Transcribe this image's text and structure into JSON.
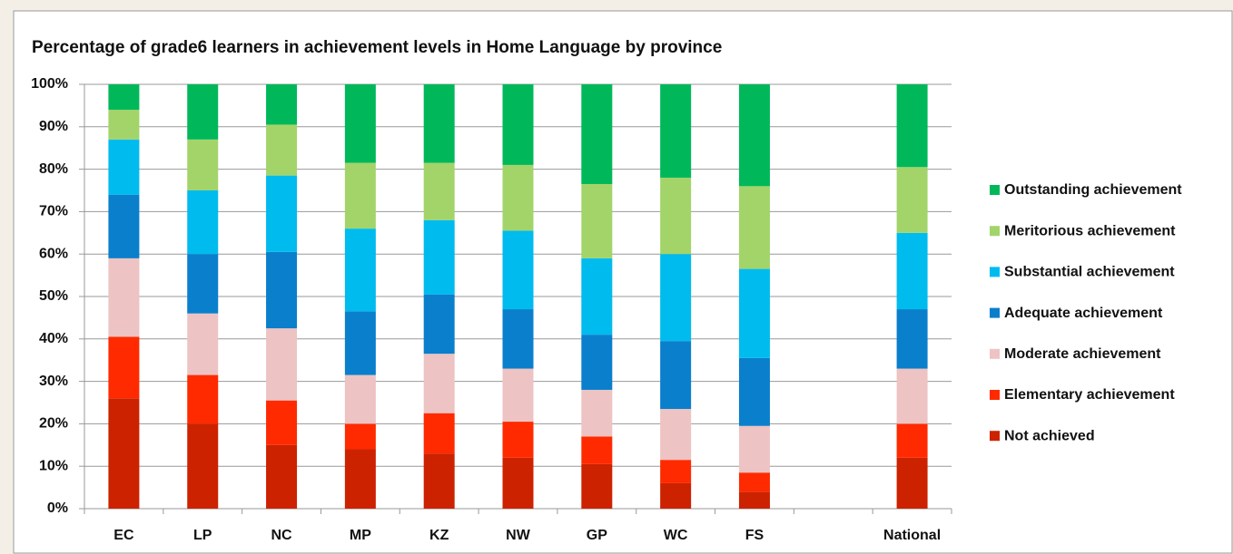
{
  "chart_data": {
    "type": "stacked_bar",
    "title": "Percentage of grade6 learners in achievement levels in Home Language by province",
    "categories": [
      "EC",
      "LP",
      "NC",
      "MP",
      "KZ",
      "NW",
      "GP",
      "WC",
      "FS",
      null,
      "National"
    ],
    "series": [
      {
        "name": "Not achieved",
        "color": "#cc2200",
        "values": [
          26,
          20,
          15,
          14,
          13,
          12,
          10.5,
          6,
          4,
          null,
          12
        ]
      },
      {
        "name": "Elementary achievement",
        "color": "#ff2a00",
        "values": [
          14.5,
          11.5,
          10.5,
          6,
          9.5,
          8.5,
          6.5,
          5.5,
          4.5,
          null,
          8
        ]
      },
      {
        "name": "Moderate achievement",
        "color": "#edc3c3",
        "values": [
          18.5,
          14.5,
          17,
          11.5,
          14,
          12.5,
          11,
          12,
          11,
          null,
          13
        ]
      },
      {
        "name": "Adequate achievement",
        "color": "#0a7fcc",
        "values": [
          15,
          14,
          18,
          15,
          14,
          14,
          13,
          16,
          16,
          null,
          14
        ]
      },
      {
        "name": "Substantial achievement",
        "color": "#00bbee",
        "values": [
          13,
          15,
          18,
          19.5,
          17.5,
          18.5,
          18,
          20.5,
          21,
          null,
          18
        ]
      },
      {
        "name": "Meritorious achievement",
        "color": "#a3d46a",
        "values": [
          7,
          12,
          12,
          15.5,
          13.5,
          15.5,
          17.5,
          18,
          19.5,
          null,
          15.5
        ]
      },
      {
        "name": "Outstanding achievement",
        "color": "#00b85a",
        "values": [
          6,
          13,
          9.5,
          18.5,
          18.5,
          19,
          23.5,
          22,
          24,
          null,
          19.5
        ]
      }
    ],
    "ylim": [
      0,
      100
    ],
    "yticks": [
      {
        "value": 0,
        "label": "0%"
      },
      {
        "value": 10,
        "label": "10%"
      },
      {
        "value": 20,
        "label": "20%"
      },
      {
        "value": 30,
        "label": "30%"
      },
      {
        "value": 40,
        "label": "40%"
      },
      {
        "value": 50,
        "label": "50%"
      },
      {
        "value": 60,
        "label": "60%"
      },
      {
        "value": 70,
        "label": "70%"
      },
      {
        "value": 80,
        "label": "80%"
      },
      {
        "value": 90,
        "label": "90%"
      },
      {
        "value": 100,
        "label": "100%"
      }
    ],
    "grid": true,
    "legend": "right"
  }
}
